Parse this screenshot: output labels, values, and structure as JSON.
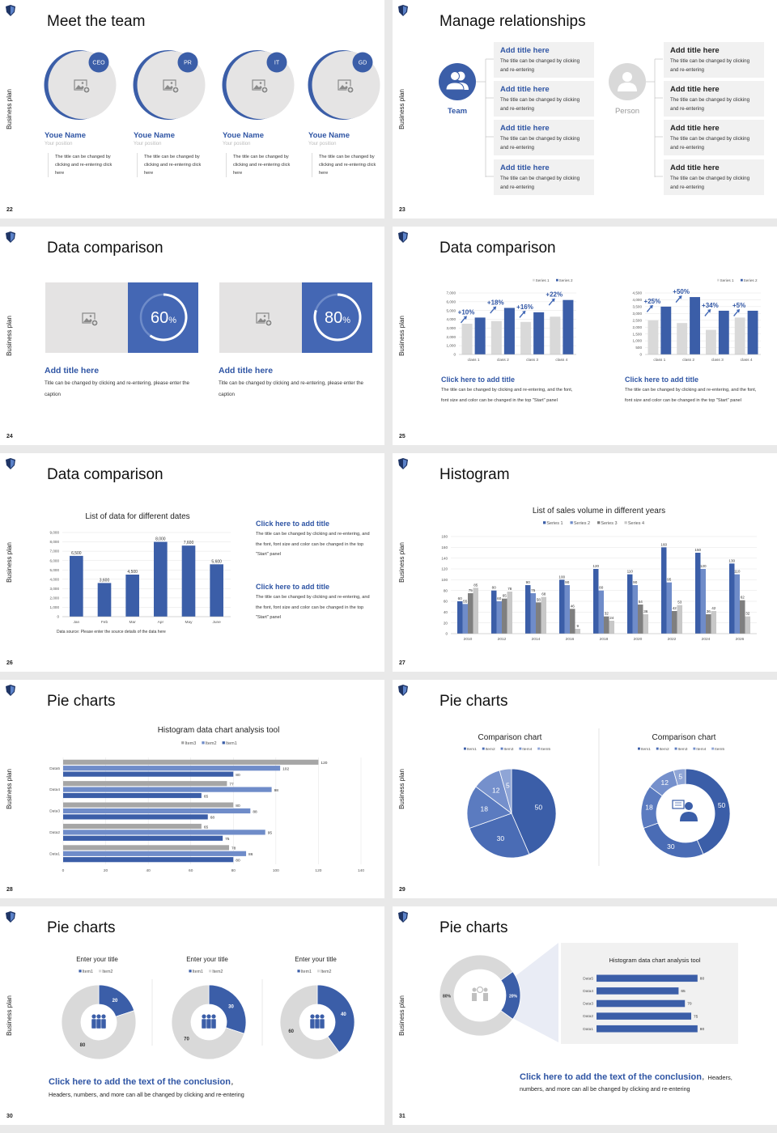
{
  "colors": {
    "accent": "#3b5ea8",
    "blue2": "#6f8cc9",
    "light_gray": "#d9d9d9",
    "mid_gray": "#a6a6a6",
    "dark_gray": "#7f7f7f",
    "panel": "#f1f1f1"
  },
  "side_label": "Business plan",
  "s22": {
    "page": "22",
    "title": "Meet the team",
    "members": [
      {
        "badge": "CEO",
        "name": "Youe Name",
        "position": "Your position",
        "desc": "The title can be changed by clicking and re-entering click here"
      },
      {
        "badge": "PR",
        "name": "Youe Name",
        "position": "Your position",
        "desc": "The title can be changed by clicking and re-entering click here"
      },
      {
        "badge": "IT",
        "name": "Youe Name",
        "position": "Your position",
        "desc": "The title can be changed by clicking and re-entering click here"
      },
      {
        "badge": "GD",
        "name": "Youe Name",
        "position": "Your position",
        "desc": "The title can be changed by clicking and re-entering click here"
      }
    ]
  },
  "s23": {
    "page": "23",
    "title": "Manage relationships",
    "team_label": "Team",
    "person_label": "Person",
    "team_items": [
      {
        "title": "Add title here",
        "text": "The title can be changed by clicking and re-entering"
      },
      {
        "title": "Add title here",
        "text": "The title can be changed by clicking and re-entering"
      },
      {
        "title": "Add title here",
        "text": "The title can be changed by clicking and re-entering"
      },
      {
        "title": "Add title here",
        "text": "The title can be changed by clicking and re-entering"
      }
    ],
    "person_items": [
      {
        "title": "Add title here",
        "text": "The title can be changed by clicking and re-entering"
      },
      {
        "title": "Add title here",
        "text": "The title can be changed by clicking and re-entering"
      },
      {
        "title": "Add title here",
        "text": "The title can be changed by clicking and re-entering"
      },
      {
        "title": "Add title here",
        "text": "The title can be changed by clicking and re-entering"
      }
    ]
  },
  "s24": {
    "page": "24",
    "title": "Data comparison",
    "cards": [
      {
        "percent": "60",
        "unit": "%",
        "value": 0.6,
        "title": "Add title here",
        "caption": "Title can be changed by clicking and re-entering, please enter the caption"
      },
      {
        "percent": "80",
        "unit": "%",
        "value": 0.8,
        "title": "Add title here",
        "caption": "Title can be changed by clicking and re-entering, please enter the caption"
      }
    ]
  },
  "s25": {
    "page": "25",
    "title": "Data comparison",
    "captions": [
      {
        "title": "Click here to add title",
        "text": "The title can be changed by clicking and re-entering, and the font, font size and color can be changed in the top \"Start\" panel"
      },
      {
        "title": "Click here to add title",
        "text": "The title can be changed by clicking and re-entering, and the font, font size and color can be changed in the top \"Start\" panel"
      }
    ]
  },
  "s26": {
    "page": "26",
    "title": "Data comparison",
    "source": "Data source: Please enter the source details of the data here",
    "captions": [
      {
        "title": "Click here to add title",
        "text": "The title can be changed by clicking and re-entering, and the font, font size and color can be changed in the top \"Start\" panel"
      },
      {
        "title": "Click here to add title",
        "text": "The title can be changed by clicking and re-entering, and the font, font size and color can be changed in the top \"Start\" panel"
      }
    ]
  },
  "s27": {
    "page": "27",
    "title": "Histogram"
  },
  "s28": {
    "page": "28",
    "title": "Pie charts"
  },
  "s29": {
    "page": "29",
    "title": "Pie charts"
  },
  "s30": {
    "page": "30",
    "title": "Pie charts",
    "conclusion": "Click here to add the text of the conclusion",
    "conclusion_suffix": "，",
    "text": "Headers, numbers, and more can all be changed by clicking and re-entering"
  },
  "s31": {
    "page": "31",
    "title": "Pie charts",
    "conclusion": "Click here to add the text of the conclusion",
    "conclusion_suffix": "，Headers,",
    "text": "numbers, and more can all be changed by clicking and re-entering"
  },
  "chart_data": [
    {
      "id": "c25a",
      "type": "bar",
      "title": "",
      "categories": [
        "class 1",
        "class 2",
        "class 3",
        "class 4"
      ],
      "series": [
        {
          "name": "Series 1",
          "values": [
            3500,
            3800,
            3700,
            4300
          ]
        },
        {
          "name": "Series 2",
          "values": [
            4200,
            5300,
            4800,
            6200
          ]
        }
      ],
      "annotations": [
        "+10%",
        "+18%",
        "+16%",
        "+22%"
      ],
      "ylim": [
        0,
        7000
      ],
      "ystep": 1000,
      "grid": true,
      "legend": "top-right"
    },
    {
      "id": "c25b",
      "type": "bar",
      "title": "",
      "categories": [
        "class 1",
        "class 2",
        "class 3",
        "class 4"
      ],
      "series": [
        {
          "name": "Series 1",
          "values": [
            2500,
            2300,
            1800,
            2700
          ]
        },
        {
          "name": "Series 2",
          "values": [
            3500,
            4200,
            3200,
            3200
          ]
        }
      ],
      "annotations": [
        "+25%",
        "+50%",
        "+34%",
        "+5%"
      ],
      "ylim": [
        0,
        4500
      ],
      "ystep": 500,
      "grid": true,
      "legend": "top-right"
    },
    {
      "id": "c26",
      "type": "bar",
      "title": "List of data for different dates",
      "categories": [
        "Jan",
        "Feb",
        "Mar",
        "Apr",
        "May",
        "June"
      ],
      "series": [
        {
          "values": [
            6500,
            3600,
            4500,
            8000,
            7600,
            5600
          ]
        }
      ],
      "ylim": [
        0,
        9000
      ],
      "ystep": 1000,
      "grid": true,
      "data_labels": true
    },
    {
      "id": "c27",
      "type": "bar",
      "title": "List of sales volume in different years",
      "categories": [
        "2010",
        "2012",
        "2014",
        "2016",
        "2018",
        "2020",
        "2022",
        "2024",
        "2026"
      ],
      "series": [
        {
          "name": "Series 1",
          "values": [
            60,
            80,
            90,
            100,
            120,
            110,
            160,
            150,
            130
          ]
        },
        {
          "name": "Series 2",
          "values": [
            55,
            60,
            75,
            90,
            80,
            90,
            95,
            120,
            110
          ]
        },
        {
          "name": "Series 3",
          "values": [
            75,
            65,
            58,
            46,
            32,
            54,
            42,
            36,
            62
          ]
        },
        {
          "name": "Series 4",
          "values": [
            85,
            78,
            68,
            9,
            24,
            36,
            53,
            42,
            32
          ]
        }
      ],
      "ylim": [
        0,
        180
      ],
      "ystep": 20,
      "grid": true,
      "data_labels": true,
      "legend": "top"
    },
    {
      "id": "c28",
      "type": "bar",
      "orientation": "horizontal",
      "title": "Histogram data chart analysis tool",
      "categories": [
        "Data1",
        "Data2",
        "Data3",
        "Data4",
        "Data5"
      ],
      "series": [
        {
          "name": "Item3",
          "values": [
            78,
            65,
            80,
            77,
            120
          ]
        },
        {
          "name": "Item2",
          "values": [
            86,
            95,
            88,
            98,
            102
          ]
        },
        {
          "name": "Item1",
          "values": [
            80,
            75,
            68,
            65,
            80
          ]
        }
      ],
      "xlim": [
        0,
        140
      ],
      "xstep": 20,
      "grid": true,
      "data_labels": true,
      "legend": "top"
    },
    {
      "id": "c29a",
      "type": "pie",
      "title": "Comparison chart",
      "labels": [
        "Item1",
        "Item2",
        "Item3",
        "Item4",
        "Item5"
      ],
      "values": [
        50,
        30,
        18,
        12,
        5
      ],
      "legend": "top"
    },
    {
      "id": "c29b",
      "type": "pie",
      "donut": true,
      "title": "Comparison chart",
      "labels": [
        "Item1",
        "Item2",
        "Item3",
        "Item4",
        "Item5"
      ],
      "values": [
        50,
        30,
        18,
        12,
        5
      ],
      "legend": "top"
    },
    {
      "id": "c30a",
      "type": "pie",
      "donut": true,
      "title": "Enter your title",
      "labels": [
        "Item1",
        "Item2"
      ],
      "values": [
        20,
        80
      ],
      "legend": "top"
    },
    {
      "id": "c30b",
      "type": "pie",
      "donut": true,
      "title": "Enter your title",
      "labels": [
        "Item1",
        "Item2"
      ],
      "values": [
        30,
        70
      ],
      "legend": "top"
    },
    {
      "id": "c30c",
      "type": "pie",
      "donut": true,
      "title": "Enter your title",
      "labels": [
        "Item1",
        "Item2"
      ],
      "values": [
        40,
        60
      ],
      "legend": "top"
    },
    {
      "id": "c31a",
      "type": "pie",
      "donut": true,
      "labels": [
        "",
        ""
      ],
      "values": [
        20,
        80
      ],
      "value_labels": [
        "20%",
        "80%"
      ]
    },
    {
      "id": "c31b",
      "type": "bar",
      "orientation": "horizontal",
      "title": "Histogram data chart analysis tool",
      "categories": [
        "Data1",
        "Data2",
        "Data3",
        "Data4",
        "Data5"
      ],
      "series": [
        {
          "values": [
            80,
            75,
            70,
            65,
            80
          ]
        }
      ],
      "data_labels": true
    }
  ]
}
